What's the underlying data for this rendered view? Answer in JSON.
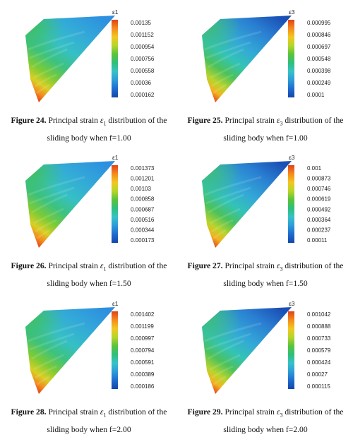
{
  "colors": {
    "scale": [
      "#1346a8",
      "#1e6bd0",
      "#2d9bd8",
      "#36c2c9",
      "#2fbf7a",
      "#59c43c",
      "#b7d52a",
      "#f2c81f",
      "#f58a1c",
      "#e0421a"
    ]
  },
  "panels": [
    {
      "colorbar_title": "ε1",
      "ticks": [
        "0.00135",
        "0.001152",
        "0.000954",
        "0.000756",
        "0.000558",
        "0.00036",
        "0.000162"
      ],
      "caption": {
        "fig": "Figure 24.",
        "pre": "Principal strain",
        "sym": "ε",
        "sub": "1",
        "post": "distribution of the sliding body when f=1.00"
      }
    },
    {
      "colorbar_title": "ε3",
      "ticks": [
        "0.000995",
        "0.000846",
        "0.000697",
        "0.000548",
        "0.000398",
        "0.000249",
        "0.0001"
      ],
      "caption": {
        "fig": "Figure 25.",
        "pre": "Principal strain",
        "sym": "ε",
        "sub": "3",
        "post": "distribution of the sliding body when f=1.00"
      }
    },
    {
      "colorbar_title": "ε1",
      "ticks": [
        "0.001373",
        "0.001201",
        "0.00103",
        "0.000858",
        "0.000687",
        "0.000516",
        "0.000344",
        "0.000173"
      ],
      "caption": {
        "fig": "Figure 26.",
        "pre": "Principal strain",
        "sym": "ε",
        "sub": "1",
        "post": "distribution of the sliding body when f=1.50"
      }
    },
    {
      "colorbar_title": "ε3",
      "ticks": [
        "0.001",
        "0.000873",
        "0.000746",
        "0.000619",
        "0.000492",
        "0.000364",
        "0.000237",
        "0.00011"
      ],
      "caption": {
        "fig": "Figure 27.",
        "pre": "Principal strain",
        "sym": "ε",
        "sub": "3",
        "post": "distribution of the sliding body when f=1.50"
      }
    },
    {
      "colorbar_title": "ε1",
      "ticks": [
        "0.001402",
        "0.001199",
        "0.000997",
        "0.000794",
        "0.000591",
        "0.000389",
        "0.000186"
      ],
      "caption": {
        "fig": "Figure 28.",
        "pre": "Principal strain",
        "sym": "ε",
        "sub": "1",
        "post": "distribution of the sliding body when f=2.00"
      }
    },
    {
      "colorbar_title": "ε3",
      "ticks": [
        "0.001042",
        "0.000888",
        "0.000733",
        "0.000579",
        "0.000424",
        "0.00027",
        "0.000115"
      ],
      "caption": {
        "fig": "Figure 29.",
        "pre": "Principal strain",
        "sym": "ε",
        "sub": "3",
        "post": "distribution of the sliding body when f=2.00"
      }
    }
  ]
}
